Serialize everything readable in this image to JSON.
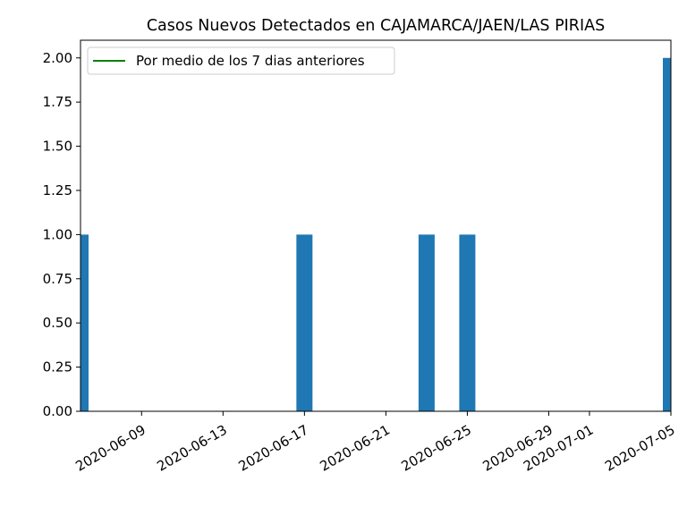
{
  "chart_data": {
    "type": "bar",
    "title": "Casos Nuevos Detectados en CAJAMARCA/JAEN/LAS PIRIAS",
    "xlabel": "",
    "ylabel": "",
    "x_range": [
      "2020-06-06",
      "2020-07-05"
    ],
    "ylim": [
      0,
      2.1
    ],
    "y_ticks": [
      "0.00",
      "0.25",
      "0.50",
      "0.75",
      "1.00",
      "1.25",
      "1.50",
      "1.75",
      "2.00"
    ],
    "x_ticks": [
      "2020-06-09",
      "2020-06-13",
      "2020-06-17",
      "2020-06-21",
      "2020-06-25",
      "2020-06-29",
      "2020-07-01",
      "2020-07-05"
    ],
    "bars": [
      {
        "date": "2020-06-06",
        "value": 1
      },
      {
        "date": "2020-06-17",
        "value": 1
      },
      {
        "date": "2020-06-23",
        "value": 1
      },
      {
        "date": "2020-06-25",
        "value": 1
      },
      {
        "date": "2020-07-05",
        "value": 2
      }
    ],
    "series": [
      {
        "name": "Por medio de los 7 dias anteriores",
        "type": "line",
        "color": "#008000",
        "values": []
      }
    ],
    "bar_color": "#1f77b4",
    "legend_position": "upper left",
    "grid": false
  }
}
